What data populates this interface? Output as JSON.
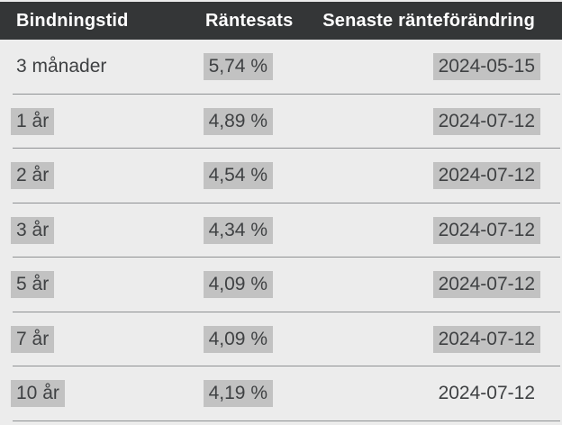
{
  "table": {
    "columns": [
      {
        "label": "Bindningstid"
      },
      {
        "label": "Räntesats"
      },
      {
        "label": "Senaste ränteförändring"
      }
    ],
    "rows": [
      {
        "term": "3 månader",
        "term_highlighted": false,
        "rate": "5,74 %",
        "rate_highlighted": true,
        "date": "2024-05-15",
        "date_highlighted": true
      },
      {
        "term": "1 år",
        "term_highlighted": true,
        "rate": "4,89 %",
        "rate_highlighted": true,
        "date": "2024-07-12",
        "date_highlighted": true
      },
      {
        "term": "2 år",
        "term_highlighted": true,
        "rate": "4,54 %",
        "rate_highlighted": true,
        "date": "2024-07-12",
        "date_highlighted": true
      },
      {
        "term": "3 år",
        "term_highlighted": true,
        "rate": "4,34 %",
        "rate_highlighted": true,
        "date": "2024-07-12",
        "date_highlighted": true
      },
      {
        "term": "5 år",
        "term_highlighted": true,
        "rate": "4,09 %",
        "rate_highlighted": true,
        "date": "2024-07-12",
        "date_highlighted": true
      },
      {
        "term": "7 år",
        "term_highlighted": true,
        "rate": "4,09 %",
        "rate_highlighted": true,
        "date": "2024-07-12",
        "date_highlighted": true
      },
      {
        "term": "10 år",
        "term_highlighted": true,
        "rate": "4,19 %",
        "rate_highlighted": true,
        "date": "2024-07-12",
        "date_highlighted": false
      }
    ],
    "colors": {
      "header_bg": "#343637",
      "header_text": "#ffffff",
      "body_bg": "#ececec",
      "highlight_bg": "#c2c2c2",
      "body_text": "#3f4143",
      "divider": "#8f9193"
    }
  }
}
